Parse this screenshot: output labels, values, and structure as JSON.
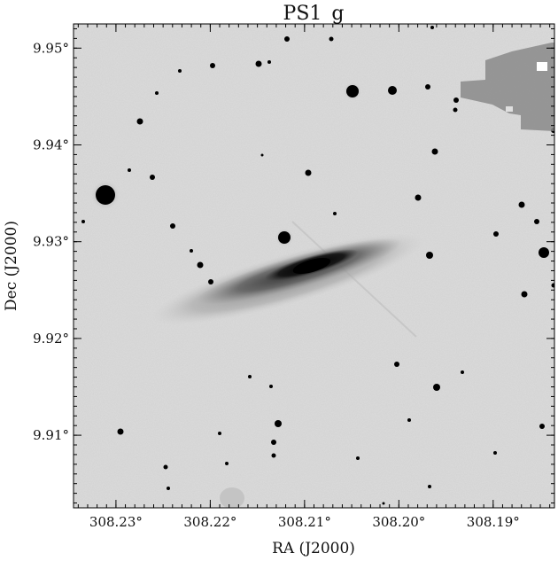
{
  "title": "PS1_g",
  "axes": {
    "xlabel": "RA (J2000)",
    "ylabel": "Dec (J2000)",
    "x_ticks": [
      {
        "label": "308.23°",
        "value": 308.23
      },
      {
        "label": "308.22°",
        "value": 308.22
      },
      {
        "label": "308.21°",
        "value": 308.21
      },
      {
        "label": "308.20°",
        "value": 308.2
      },
      {
        "label": "308.19°",
        "value": 308.19
      }
    ],
    "y_ticks": [
      {
        "label": "9.95°",
        "value": 9.95
      },
      {
        "label": "9.94°",
        "value": 9.94
      },
      {
        "label": "9.93°",
        "value": 9.93
      },
      {
        "label": "9.92°",
        "value": 9.92
      },
      {
        "label": "9.91°",
        "value": 9.91
      }
    ],
    "ra_range": [
      308.2345,
      308.1835
    ],
    "dec_range": [
      9.9025,
      9.9525
    ]
  },
  "image": {
    "colormap": "inverted-grayscale",
    "background": "#dcdcdc",
    "subject": "edge-on spiral galaxy"
  }
}
